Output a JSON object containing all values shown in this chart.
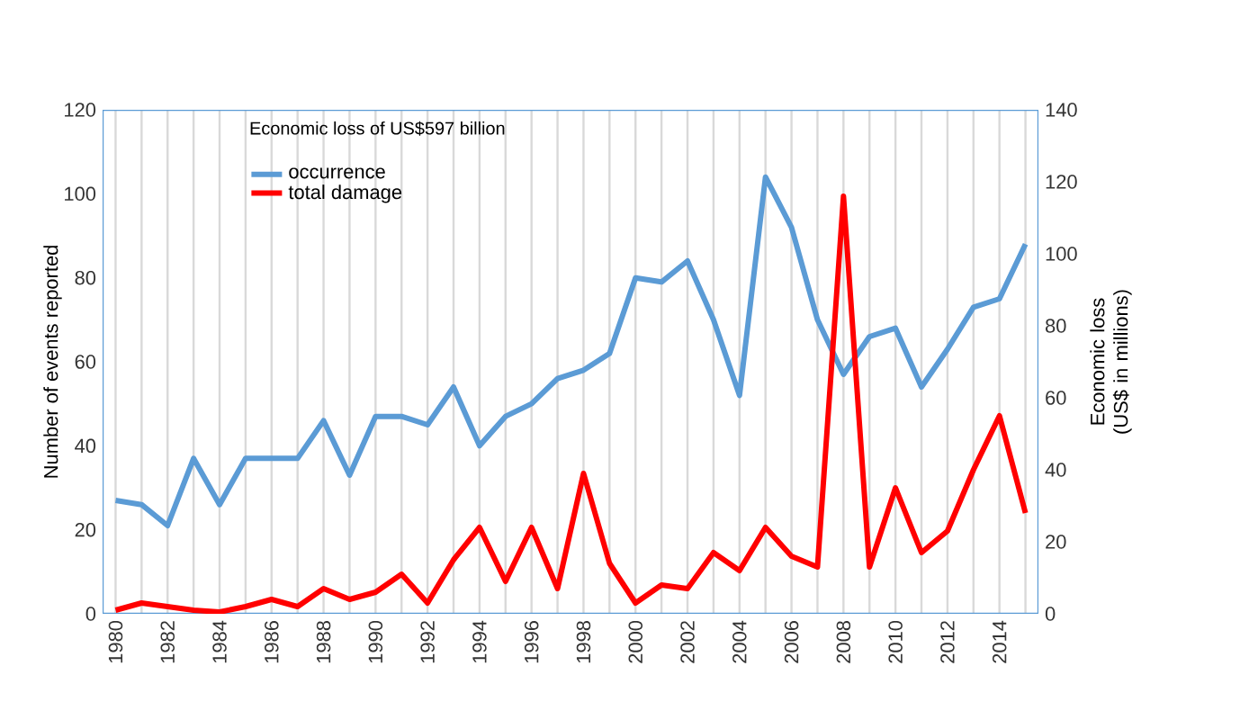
{
  "chart_data": {
    "type": "line",
    "annotations": [
      "Economic loss of US$597 billion"
    ],
    "ylabel": "Number of events reported",
    "y2label": "Economic loss (US$ in millions)",
    "categories": [
      "1980",
      null,
      "1982",
      null,
      "1984",
      null,
      "1986",
      null,
      "1988",
      null,
      "1990",
      null,
      "1992",
      null,
      "1994",
      null,
      "1996",
      null,
      "1998",
      null,
      "2000",
      null,
      "2002",
      null,
      "2004",
      null,
      "2006",
      null,
      "2008",
      null,
      "2010",
      null,
      "2012",
      null,
      "2014",
      null
    ],
    "series": [
      {
        "name": "occurrence",
        "color": "#5b9bd5",
        "values": [
          27,
          26,
          21,
          37,
          26,
          37,
          37,
          37,
          46,
          33,
          47,
          47,
          45,
          54,
          40,
          47,
          50,
          56,
          58,
          62,
          80,
          79,
          84,
          70,
          52,
          104,
          92,
          70,
          57,
          66,
          68,
          54,
          63,
          73,
          75,
          88
        ]
      },
      {
        "name": "total damage",
        "color": "#ff0000",
        "axis": "y2",
        "values": [
          1,
          3,
          2,
          1,
          0.5,
          2,
          4,
          2,
          7,
          4,
          6,
          11,
          3,
          15,
          24,
          9,
          24,
          7,
          39,
          14,
          3,
          8,
          7,
          17,
          12,
          24,
          16,
          13,
          116,
          13,
          35,
          17,
          23,
          40,
          55,
          28
        ]
      }
    ],
    "ylim": [
      0,
      120
    ],
    "yticks": [
      0,
      20,
      40,
      60,
      80,
      100,
      120
    ],
    "y2lim": [
      0,
      140
    ],
    "y2ticks": [
      0,
      20,
      40,
      60,
      80,
      100,
      120,
      140
    ],
    "grid": "x",
    "legend": "top left",
    "marker": "none",
    "line_style": "solid"
  }
}
